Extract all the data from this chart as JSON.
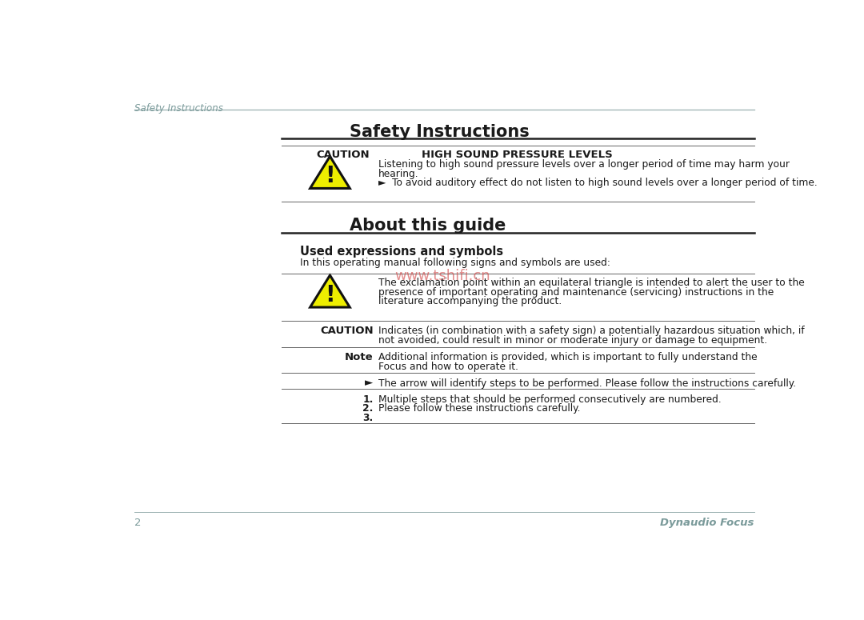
{
  "bg_color": "#ffffff",
  "header_text": "Safety Instructions",
  "header_text_color": "#7a9a9a",
  "header_line_color": "#9ab0b0",
  "footer_page_num": "2",
  "footer_brand": "Dynaudio Focus",
  "footer_color": "#7a9a9a",
  "section1_title": "Safety Instructions",
  "section2_title": "About this guide",
  "subsection_title": "Used expressions and symbols",
  "intro_text": "In this operating manual following signs and symbols are used:",
  "caution_label": "CAUTION",
  "caution_warning_title": "HIGH SOUND PRESSURE LEVELS",
  "caution_warning_body1": "Listening to high sound pressure levels over a longer period of time may harm your",
  "caution_warning_body2": "hearing.",
  "caution_warning_body3": "►  To avoid auditory effect do not listen to high sound levels over a longer period of time.",
  "triangle_desc1": "The exclamation point within an equilateral triangle is intended to alert the user to the",
  "triangle_desc2": "presence of important operating and maintenance (servicing) instructions in the",
  "triangle_desc3": "literature accompanying the product.",
  "caution2_label": "CAUTION",
  "caution2_text1": "Indicates (in combination with a safety sign) a potentially hazardous situation which, if",
  "caution2_text2": "not avoided, could result in minor or moderate injury or damage to equipment.",
  "note_label": "Note",
  "note_text1": "Additional information is provided, which is important to fully understand the",
  "note_text2": "Focus and how to operate it.",
  "arrow_text": "The arrow will identify steps to be performed. Please follow the instructions carefully.",
  "num1_text": "Multiple steps that should be performed consecutively are numbered.",
  "num2_text": "Please follow these instructions carefully.",
  "watermark": "www.tshifi.cn",
  "watermark_color": "#d04040",
  "text_color": "#1a1a1a",
  "line_color_dark": "#222222",
  "line_color_mid": "#666666"
}
